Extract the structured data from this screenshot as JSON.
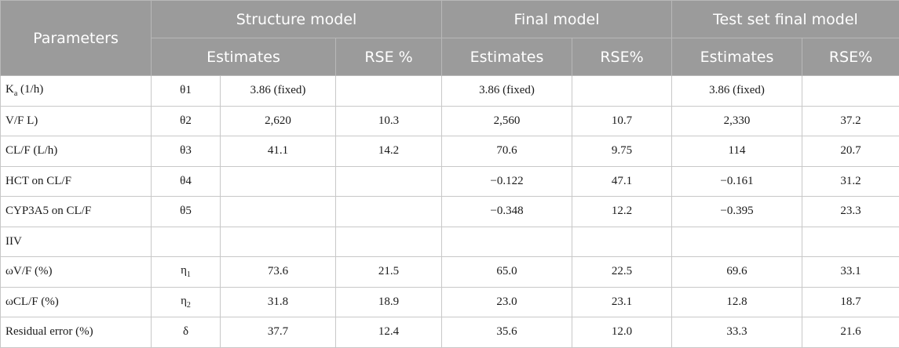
{
  "header": {
    "parameters": "Parameters",
    "groups": [
      "Structure model",
      "Final model",
      "Test set final model"
    ],
    "estimates": "Estimates",
    "rse_structure": "RSE %",
    "rse_final": "RSE%",
    "rse_test": "RSE%"
  },
  "rows": [
    {
      "param": "K",
      "param_sub": "a",
      "param_rest": " (1/h)",
      "sym": "θ1",
      "se": "3.86 (fixed)",
      "sr": "",
      "fe": "3.86 (fixed)",
      "fr": "",
      "te": "3.86 (fixed)",
      "tr": ""
    },
    {
      "param": "V/F L)",
      "sym": "θ2",
      "se": "2,620",
      "sr": "10.3",
      "fe": "2,560",
      "fr": "10.7",
      "te": "2,330",
      "tr": "37.2"
    },
    {
      "param": "CL/F (L/h)",
      "sym": "θ3",
      "se": "41.1",
      "sr": "14.2",
      "fe": "70.6",
      "fr": "9.75",
      "te": "114",
      "tr": "20.7"
    },
    {
      "param": "HCT on CL/F",
      "sym": "θ4",
      "se": "",
      "sr": "",
      "fe": "−0.122",
      "fr": "47.1",
      "te": "−0.161",
      "tr": "31.2"
    },
    {
      "param": "CYP3A5 on CL/F",
      "sym": "θ5",
      "se": "",
      "sr": "",
      "fe": "−0.348",
      "fr": "12.2",
      "te": "−0.395",
      "tr": "23.3"
    },
    {
      "param": "IIV",
      "sym": "",
      "se": "",
      "sr": "",
      "fe": "",
      "fr": "",
      "te": "",
      "tr": ""
    },
    {
      "param": "ωV/F (%)",
      "sym": "η",
      "sym_sub": "1",
      "se": "73.6",
      "sr": "21.5",
      "fe": "65.0",
      "fr": "22.5",
      "te": "69.6",
      "tr": "33.1"
    },
    {
      "param": "ωCL/F (%)",
      "sym": "η",
      "sym_sub": "2",
      "se": "31.8",
      "sr": "18.9",
      "fe": "23.0",
      "fr": "23.1",
      "te": "12.8",
      "tr": "18.7"
    },
    {
      "param": "Residual error (%)",
      "sym": "δ",
      "se": "37.7",
      "sr": "12.4",
      "fe": "35.6",
      "fr": "12.0",
      "te": "33.3",
      "tr": "21.6"
    }
  ]
}
